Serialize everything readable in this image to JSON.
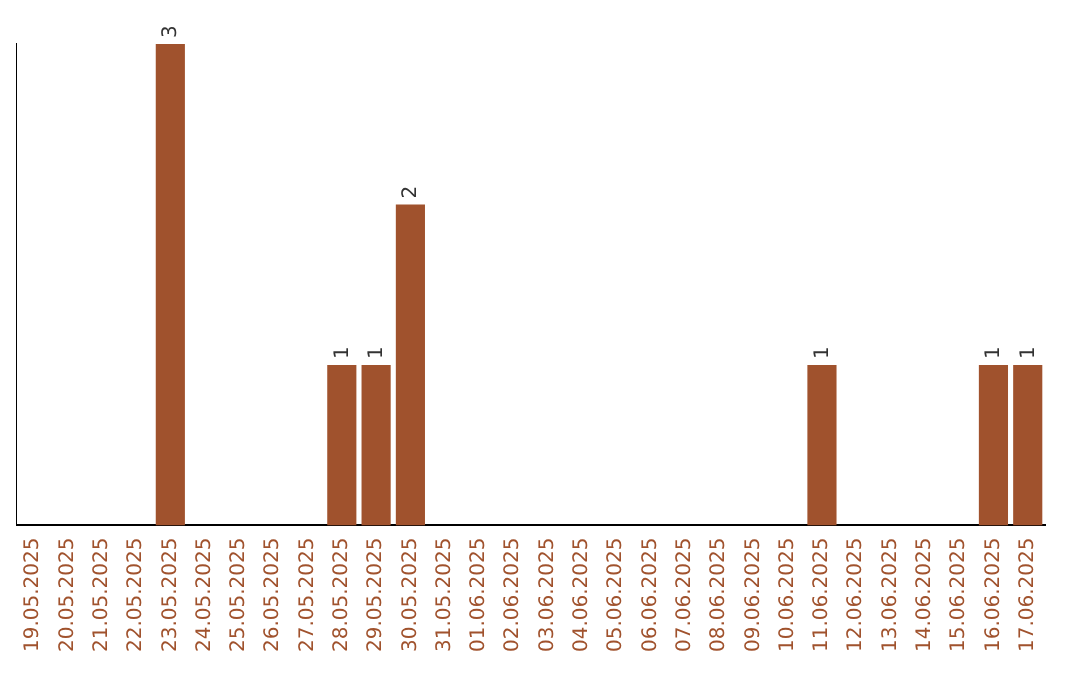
{
  "chart_data": {
    "type": "bar",
    "categories": [
      "19.05.2025",
      "20.05.2025",
      "21.05.2025",
      "22.05.2025",
      "23.05.2025",
      "24.05.2025",
      "25.05.2025",
      "26.05.2025",
      "27.05.2025",
      "28.05.2025",
      "29.05.2025",
      "30.05.2025",
      "31.05.2025",
      "01.06.2025",
      "02.06.2025",
      "03.06.2025",
      "04.06.2025",
      "05.06.2025",
      "06.06.2025",
      "07.06.2025",
      "08.06.2025",
      "09.06.2025",
      "10.06.2025",
      "11.06.2025",
      "12.06.2025",
      "13.06.2025",
      "14.06.2025",
      "15.06.2025",
      "16.06.2025",
      "17.06.2025"
    ],
    "values": [
      0,
      0,
      0,
      0,
      3,
      0,
      0,
      0,
      0,
      1,
      1,
      2,
      0,
      0,
      0,
      0,
      0,
      0,
      0,
      0,
      0,
      0,
      0,
      1,
      0,
      0,
      0,
      0,
      1,
      1
    ],
    "value_labels": [
      null,
      null,
      null,
      null,
      "3",
      null,
      null,
      null,
      null,
      "1",
      "1",
      "2",
      null,
      null,
      null,
      null,
      null,
      null,
      null,
      null,
      null,
      null,
      null,
      "1",
      null,
      null,
      null,
      null,
      "1",
      "1"
    ],
    "color": "#a0522d",
    "grid": false,
    "legend": false,
    "tick_labels": "x"
  }
}
